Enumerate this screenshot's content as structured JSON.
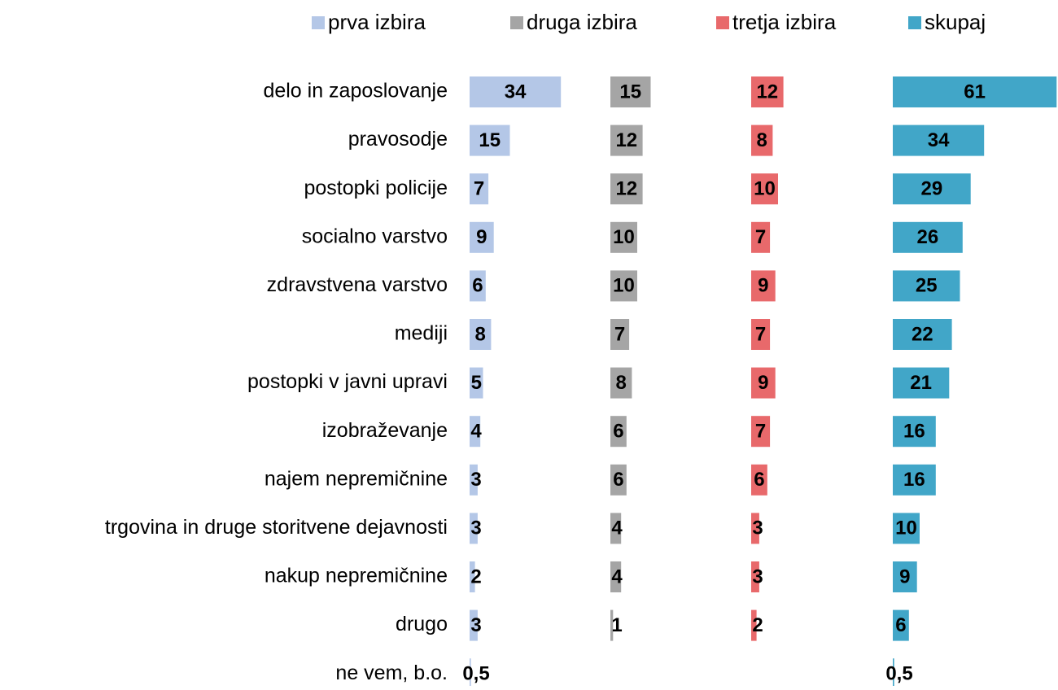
{
  "chart_data": {
    "type": "bar",
    "categories": [
      "delo in zaposlovanje",
      "pravosodje",
      "postopki policije",
      "socialno varstvo",
      "zdravstvena varstvo",
      "mediji",
      "postopki v javni upravi",
      "izobraževanje",
      "najem nepremičnine",
      "trgovina in druge storitvene dejavnosti",
      "nakup nepremičnine",
      "drugo",
      "ne vem, b.o."
    ],
    "series": [
      {
        "name": "prva izbira",
        "color": "#b4c7e7",
        "values": [
          34,
          15,
          7,
          9,
          6,
          8,
          5,
          4,
          3,
          3,
          2,
          3,
          0.5
        ],
        "value_labels": [
          "34",
          "15",
          "7",
          "9",
          "6",
          "8",
          "5",
          "4",
          "3",
          "3",
          "2",
          "3",
          "0,5"
        ]
      },
      {
        "name": "druga izbira",
        "color": "#a5a5a5",
        "values": [
          15,
          12,
          12,
          10,
          10,
          7,
          8,
          6,
          6,
          4,
          4,
          1,
          null
        ]
      },
      {
        "name": "tretja izbira",
        "color": "#e8696b",
        "values": [
          12,
          8,
          10,
          7,
          9,
          7,
          9,
          7,
          6,
          3,
          3,
          2,
          null
        ]
      },
      {
        "name": "skupaj",
        "color": "#41a6c8",
        "values": [
          61,
          34,
          29,
          26,
          25,
          22,
          21,
          16,
          16,
          10,
          9,
          6,
          0.5
        ],
        "value_labels": [
          "61",
          "34",
          "29",
          "26",
          "25",
          "22",
          "21",
          "16",
          "16",
          "10",
          "9",
          "6",
          "0,5"
        ]
      }
    ],
    "legend": "top"
  }
}
